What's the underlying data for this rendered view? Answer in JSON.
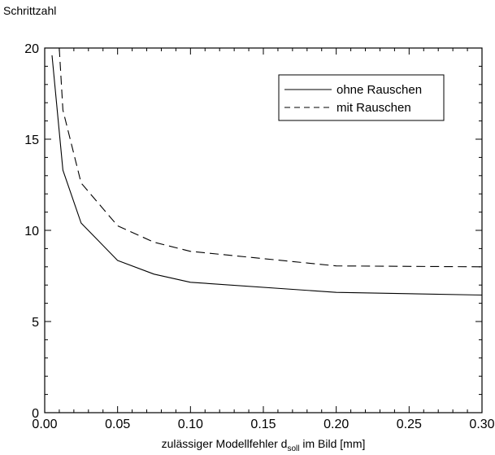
{
  "chart_data": {
    "type": "line",
    "ylabel": "Schrittzahl",
    "xlabel_main": "zulässiger Modellfehler d",
    "xlabel_sub": "soll",
    "xlabel_tail": " im Bild [mm]",
    "xlim": [
      0,
      0.3
    ],
    "ylim": [
      0,
      20
    ],
    "xticks": [
      "0.00",
      "0.05",
      "0.10",
      "0.15",
      "0.20",
      "0.25",
      "0.30"
    ],
    "yticks": [
      "0",
      "5",
      "10",
      "15",
      "20"
    ],
    "legend_position": "top-right",
    "grid": false,
    "series": [
      {
        "name": "ohne Rauschen",
        "style": "solid",
        "color": "#000000",
        "x": [
          0.005,
          0.0125,
          0.025,
          0.05,
          0.075,
          0.1,
          0.2,
          0.3
        ],
        "y": [
          19.6,
          13.3,
          10.4,
          8.35,
          7.6,
          7.15,
          6.6,
          6.45
        ]
      },
      {
        "name": "mit Rauschen",
        "style": "dashed",
        "color": "#000000",
        "x": [
          0.01,
          0.0125,
          0.025,
          0.05,
          0.075,
          0.1,
          0.2,
          0.3
        ],
        "y": [
          20.0,
          16.6,
          12.6,
          10.25,
          9.35,
          8.85,
          8.05,
          8.0
        ]
      }
    ]
  }
}
